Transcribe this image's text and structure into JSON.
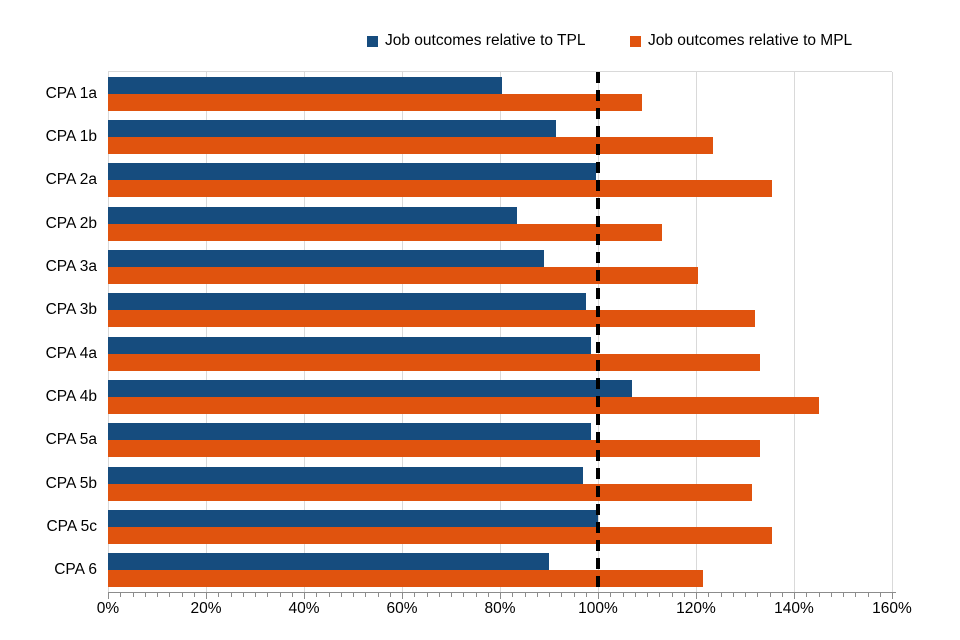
{
  "chart_data": {
    "type": "bar",
    "orientation": "horizontal",
    "title": "",
    "xlabel": "",
    "ylabel": "",
    "categories": [
      "CPA 1a",
      "CPA 1b",
      "CPA 2a",
      "CPA 2b",
      "CPA 3a",
      "CPA 3b",
      "CPA 4a",
      "CPA 4b",
      "CPA 5a",
      "CPA 5b",
      "CPA 5c",
      "CPA 6"
    ],
    "series": [
      {
        "name": "Job outcomes relative to TPL",
        "color": "#164C7E",
        "values": [
          80.5,
          91.5,
          99.5,
          83.5,
          89,
          97.5,
          98.5,
          107,
          98.5,
          97,
          100,
          90
        ]
      },
      {
        "name": "Job outcomes relative to MPL",
        "color": "#E0530E",
        "values": [
          109,
          123.5,
          135.5,
          113,
          120.5,
          132,
          133,
          145,
          133,
          131.5,
          135.5,
          121.5
        ]
      }
    ],
    "x_axis": {
      "min": 0,
      "max": 160,
      "major_step": 20,
      "minor_step": 2.5,
      "tick_labels": [
        "0%",
        "20%",
        "40%",
        "60%",
        "80%",
        "100%",
        "120%",
        "140%",
        "160%"
      ]
    },
    "reference_line": {
      "value": 100,
      "style": "dashed",
      "color": "#000000"
    },
    "legend_position": "top",
    "grid": "vertical-major-gridlines"
  },
  "colors": {
    "gridline": "#D9D9D9",
    "axis": "#8C8C8C",
    "text": "#000000",
    "background": "#FFFFFF"
  }
}
